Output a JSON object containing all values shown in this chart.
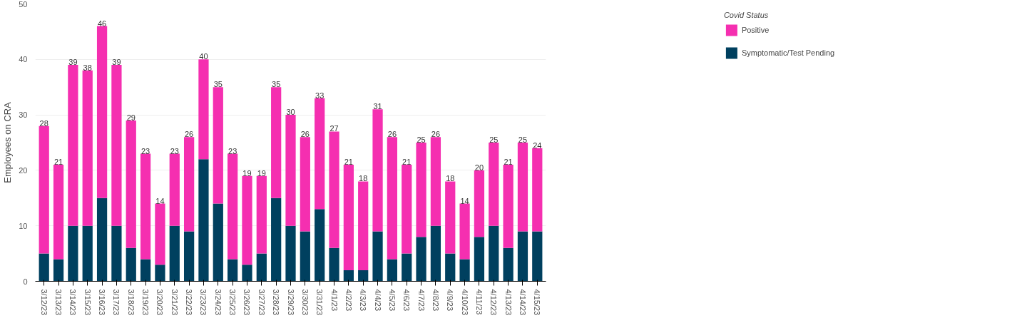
{
  "chart_data": {
    "type": "bar",
    "stacked": true,
    "ylabel": "Employees on CRA",
    "legend_title": "Covid Status",
    "legend": "right",
    "grid": "y",
    "categories": [
      "3/12/23",
      "3/13/23",
      "3/14/23",
      "3/15/23",
      "3/16/23",
      "3/17/23",
      "3/18/23",
      "3/19/23",
      "3/20/23",
      "3/21/23",
      "3/22/23",
      "3/23/23",
      "3/24/23",
      "3/25/23",
      "3/26/23",
      "3/27/23",
      "3/28/23",
      "3/29/23",
      "3/30/23",
      "3/31/23",
      "4/1/23",
      "4/2/23",
      "4/3/23",
      "4/4/23",
      "4/5/23",
      "4/6/23",
      "4/7/23",
      "4/8/23",
      "4/9/23",
      "4/10/23",
      "4/11/23",
      "4/12/23",
      "4/13/23",
      "4/14/23",
      "4/15/23"
    ],
    "series": [
      {
        "name": "Symptomatic/Test Pending",
        "color": "#00405f",
        "values": [
          5,
          4,
          10,
          10,
          15,
          10,
          6,
          4,
          3,
          10,
          9,
          22,
          14,
          4,
          3,
          5,
          15,
          10,
          9,
          13,
          6,
          2,
          2,
          9,
          4,
          5,
          8,
          10,
          5,
          4,
          8,
          10,
          6,
          9,
          9
        ]
      },
      {
        "name": "Positive",
        "color": "#f52fb0",
        "values": [
          23,
          17,
          29,
          28,
          31,
          29,
          23,
          19,
          11,
          13,
          17,
          18,
          21,
          19,
          16,
          14,
          20,
          20,
          17,
          20,
          21,
          19,
          16,
          22,
          22,
          16,
          17,
          16,
          13,
          10,
          12,
          15,
          15,
          16,
          15
        ]
      }
    ],
    "totals": [
      "28",
      "21",
      "39",
      "38",
      "46",
      "39",
      "29",
      "23",
      "14",
      "23",
      "26",
      "40",
      "35",
      "23",
      "19",
      "19",
      "35",
      "30",
      "26",
      "33",
      "27",
      "21",
      "18",
      "31",
      "26",
      "21",
      "25",
      "26",
      "18",
      "14",
      "20",
      "25",
      "21",
      "25",
      "24"
    ],
    "ylim": [
      0,
      50
    ],
    "yticks": [
      0,
      10,
      20,
      30,
      40,
      50
    ]
  }
}
